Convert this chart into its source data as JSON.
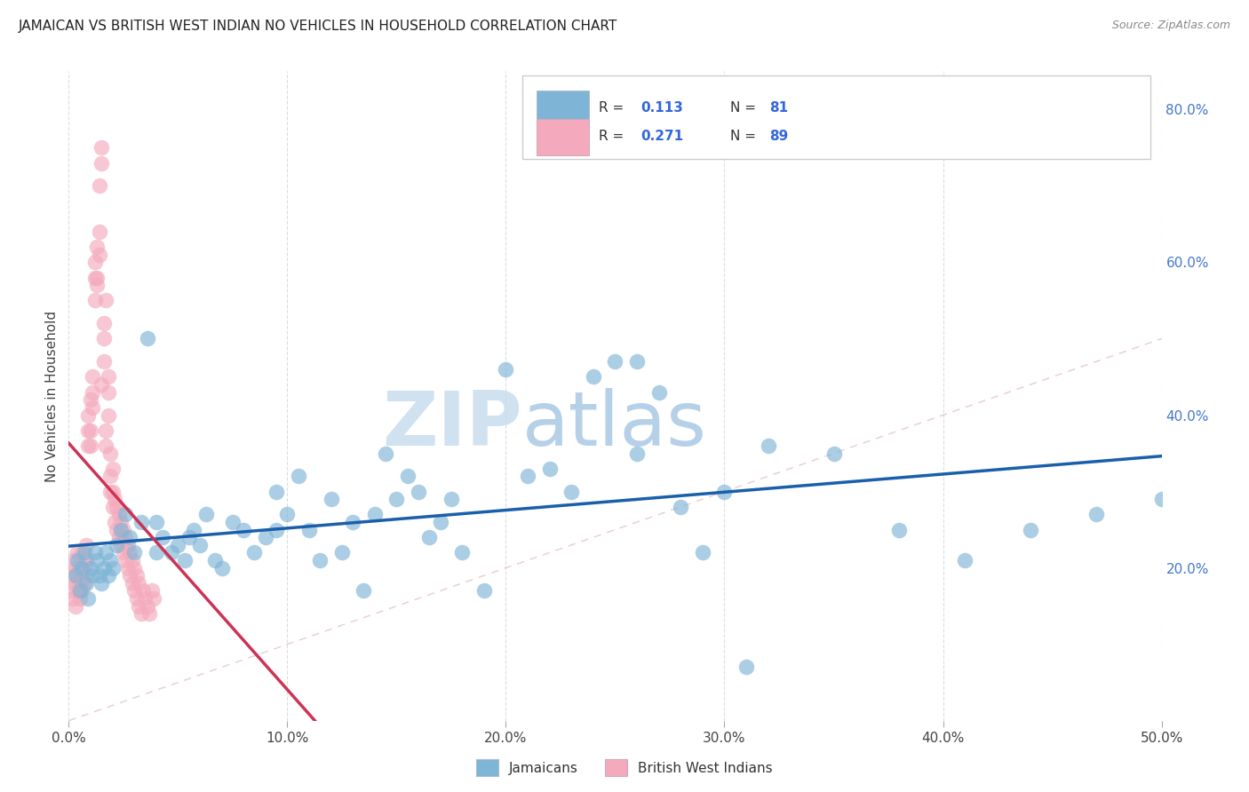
{
  "title": "JAMAICAN VS BRITISH WEST INDIAN NO VEHICLES IN HOUSEHOLD CORRELATION CHART",
  "source": "Source: ZipAtlas.com",
  "ylabel": "No Vehicles in Household",
  "xlim": [
    0.0,
    0.5
  ],
  "ylim": [
    0.0,
    0.85
  ],
  "xtick_vals": [
    0.0,
    0.1,
    0.2,
    0.3,
    0.4,
    0.5
  ],
  "xtick_labels": [
    "0.0%",
    "10.0%",
    "20.0%",
    "30.0%",
    "40.0%",
    "50.0%"
  ],
  "ytick_vals": [
    0.2,
    0.4,
    0.6,
    0.8
  ],
  "ytick_labels": [
    "20.0%",
    "40.0%",
    "60.0%",
    "80.0%"
  ],
  "legend_jamaicans": "Jamaicans",
  "legend_bwi": "British West Indians",
  "R_jamaicans": "0.113",
  "N_jamaicans": "81",
  "R_bwi": "0.271",
  "N_bwi": "89",
  "blue_color": "#7EB5D6",
  "pink_color": "#F4AABC",
  "trend_blue": "#1A5FAB",
  "trend_pink": "#CC3355",
  "diag_color": "#DDB8B8",
  "watermark_zip": "ZIP",
  "watermark_atlas": "atlas",
  "jamaicans_x": [
    0.003,
    0.004,
    0.005,
    0.006,
    0.007,
    0.008,
    0.009,
    0.01,
    0.011,
    0.012,
    0.013,
    0.014,
    0.015,
    0.016,
    0.017,
    0.018,
    0.019,
    0.02,
    0.022,
    0.024,
    0.026,
    0.028,
    0.03,
    0.033,
    0.036,
    0.04,
    0.043,
    0.047,
    0.05,
    0.053,
    0.057,
    0.06,
    0.063,
    0.067,
    0.07,
    0.075,
    0.08,
    0.085,
    0.09,
    0.095,
    0.1,
    0.105,
    0.11,
    0.115,
    0.12,
    0.125,
    0.13,
    0.135,
    0.14,
    0.145,
    0.15,
    0.155,
    0.16,
    0.165,
    0.17,
    0.175,
    0.18,
    0.19,
    0.2,
    0.21,
    0.22,
    0.23,
    0.24,
    0.25,
    0.26,
    0.27,
    0.28,
    0.3,
    0.32,
    0.35,
    0.38,
    0.41,
    0.44,
    0.47,
    0.5,
    0.095,
    0.04,
    0.055,
    0.26,
    0.29,
    0.31
  ],
  "jamaicans_y": [
    0.19,
    0.21,
    0.17,
    0.2,
    0.22,
    0.18,
    0.16,
    0.2,
    0.19,
    0.22,
    0.21,
    0.19,
    0.18,
    0.2,
    0.22,
    0.19,
    0.21,
    0.2,
    0.23,
    0.25,
    0.27,
    0.24,
    0.22,
    0.26,
    0.5,
    0.22,
    0.24,
    0.22,
    0.23,
    0.21,
    0.25,
    0.23,
    0.27,
    0.21,
    0.2,
    0.26,
    0.25,
    0.22,
    0.24,
    0.3,
    0.27,
    0.32,
    0.25,
    0.21,
    0.29,
    0.22,
    0.26,
    0.17,
    0.27,
    0.35,
    0.29,
    0.32,
    0.3,
    0.24,
    0.26,
    0.29,
    0.22,
    0.17,
    0.46,
    0.32,
    0.33,
    0.3,
    0.45,
    0.47,
    0.35,
    0.43,
    0.28,
    0.3,
    0.36,
    0.35,
    0.25,
    0.21,
    0.25,
    0.27,
    0.29,
    0.25,
    0.26,
    0.24,
    0.47,
    0.22,
    0.07
  ],
  "bwi_x": [
    0.001,
    0.001,
    0.002,
    0.002,
    0.003,
    0.003,
    0.003,
    0.004,
    0.004,
    0.004,
    0.005,
    0.005,
    0.005,
    0.006,
    0.006,
    0.006,
    0.007,
    0.007,
    0.007,
    0.008,
    0.008,
    0.008,
    0.009,
    0.009,
    0.009,
    0.01,
    0.01,
    0.01,
    0.011,
    0.011,
    0.011,
    0.012,
    0.012,
    0.012,
    0.013,
    0.013,
    0.013,
    0.014,
    0.014,
    0.014,
    0.015,
    0.015,
    0.015,
    0.016,
    0.016,
    0.016,
    0.017,
    0.017,
    0.017,
    0.018,
    0.018,
    0.018,
    0.019,
    0.019,
    0.019,
    0.02,
    0.02,
    0.02,
    0.021,
    0.021,
    0.022,
    0.022,
    0.023,
    0.023,
    0.024,
    0.024,
    0.025,
    0.025,
    0.026,
    0.026,
    0.027,
    0.027,
    0.028,
    0.028,
    0.029,
    0.029,
    0.03,
    0.03,
    0.031,
    0.031,
    0.032,
    0.032,
    0.033,
    0.034,
    0.035,
    0.036,
    0.037,
    0.038,
    0.039
  ],
  "bwi_y": [
    0.17,
    0.19,
    0.16,
    0.21,
    0.18,
    0.2,
    0.15,
    0.19,
    0.22,
    0.17,
    0.2,
    0.18,
    0.16,
    0.22,
    0.19,
    0.17,
    0.21,
    0.2,
    0.18,
    0.23,
    0.21,
    0.19,
    0.36,
    0.38,
    0.4,
    0.42,
    0.38,
    0.36,
    0.41,
    0.43,
    0.45,
    0.55,
    0.58,
    0.6,
    0.62,
    0.58,
    0.57,
    0.61,
    0.64,
    0.7,
    0.73,
    0.75,
    0.44,
    0.47,
    0.5,
    0.52,
    0.55,
    0.38,
    0.36,
    0.4,
    0.43,
    0.45,
    0.3,
    0.32,
    0.35,
    0.28,
    0.3,
    0.33,
    0.26,
    0.29,
    0.25,
    0.28,
    0.24,
    0.27,
    0.23,
    0.26,
    0.22,
    0.25,
    0.21,
    0.24,
    0.2,
    0.23,
    0.19,
    0.22,
    0.18,
    0.21,
    0.17,
    0.2,
    0.16,
    0.19,
    0.15,
    0.18,
    0.14,
    0.17,
    0.16,
    0.15,
    0.14,
    0.17,
    0.16
  ]
}
